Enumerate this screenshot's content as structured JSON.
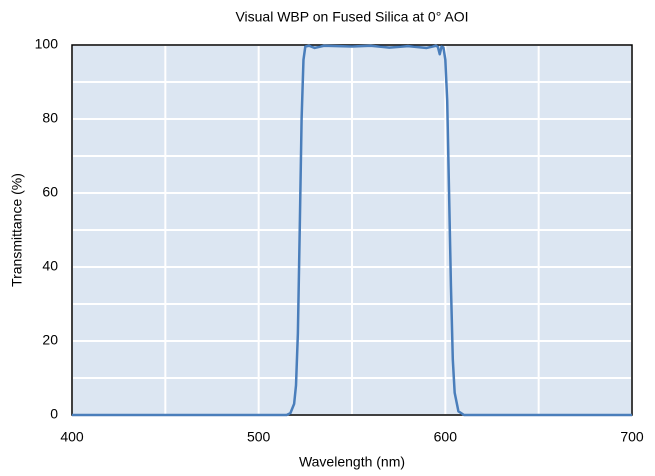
{
  "chart_data": {
    "type": "line",
    "title": "Visual WBP on Fused Silica at 0° AOI",
    "x_label": "Wavelength (nm)",
    "y_label": "Transmittance (%)",
    "xlim": [
      400,
      700
    ],
    "ylim": [
      0,
      100
    ],
    "xticks": [
      400,
      500,
      600,
      700
    ],
    "yticks": [
      0,
      20,
      40,
      60,
      80,
      100
    ],
    "xminor": [
      450,
      550,
      650
    ],
    "yminor": [
      10,
      30,
      50,
      70,
      90
    ],
    "grid": true,
    "series": [
      {
        "color": "#4a7ebb",
        "x": [
          400,
          515,
          517,
          519,
          520,
          521,
          522,
          523,
          524,
          525,
          527,
          530,
          535,
          550,
          560,
          570,
          580,
          590,
          595,
          596,
          597,
          598,
          599,
          600,
          601,
          602,
          603,
          604,
          605,
          607,
          610,
          700
        ],
        "values": [
          0,
          0,
          0.5,
          3,
          8,
          22,
          50,
          80,
          96,
          99.6,
          99.8,
          99.2,
          99.8,
          99.6,
          99.8,
          99.3,
          99.7,
          99.2,
          99.8,
          99.5,
          97.5,
          99.6,
          99.3,
          96,
          85,
          60,
          35,
          15,
          6,
          1,
          0,
          0
        ]
      }
    ]
  }
}
